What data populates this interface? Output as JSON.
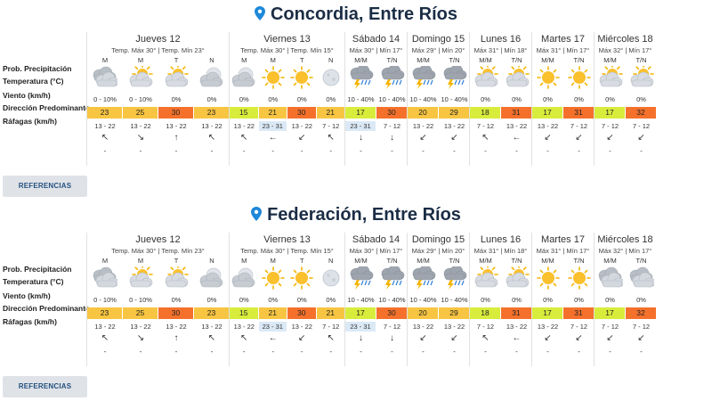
{
  "row_labels": {
    "precip": "Prob. Precipitación",
    "temp": "Temperatura (°C)",
    "wind": "Viento (km/h)",
    "direction": "Dirección Predominante",
    "gusts": "Ráfagas (km/h)"
  },
  "reference_button": "REFERENCIAS",
  "colors": {
    "title": "#1b2d45",
    "pin": "#1e88d9",
    "wind_highlight": "#dbe9f6"
  },
  "panels": [
    {
      "title": "Concordia, Entre Ríos",
      "days": [
        {
          "name": "Jueves 12",
          "sub": "Temp. Máx 30° | Temp. Mín 23°",
          "slots": [
            {
              "label": "M",
              "icon": "cloudy-icon",
              "precip": "0 - 10%",
              "temp": "23",
              "temp_color": "#f7c541",
              "wind": "13 - 22",
              "wind_hl": false,
              "dir": "↖",
              "gust": "-"
            },
            {
              "label": "M",
              "icon": "partly-cloudy-icon",
              "precip": "0 - 10%",
              "temp": "25",
              "temp_color": "#f7c541",
              "wind": "13 - 22",
              "wind_hl": false,
              "dir": "↘",
              "gust": "-"
            },
            {
              "label": "T",
              "icon": "partly-cloudy-icon",
              "precip": "0%",
              "temp": "30",
              "temp_color": "#f5712b",
              "wind": "13 - 22",
              "wind_hl": false,
              "dir": "↑",
              "gust": "-"
            },
            {
              "label": "N",
              "icon": "cloudy-night-icon",
              "precip": "0%",
              "temp": "23",
              "temp_color": "#f7c541",
              "wind": "13 - 22",
              "wind_hl": false,
              "dir": "↖",
              "gust": "-"
            }
          ]
        },
        {
          "name": "Viernes 13",
          "sub": "Temp. Máx 30° | Temp. Mín 15°",
          "slots": [
            {
              "label": "M",
              "icon": "cloudy-night-icon",
              "precip": "0%",
              "temp": "15",
              "temp_color": "#d8ec3c",
              "wind": "13 - 22",
              "wind_hl": false,
              "dir": "↖",
              "gust": "-"
            },
            {
              "label": "M",
              "icon": "sun-icon",
              "precip": "0%",
              "temp": "21",
              "temp_color": "#f7c541",
              "wind": "23 - 31",
              "wind_hl": true,
              "dir": "←",
              "gust": "-"
            },
            {
              "label": "T",
              "icon": "sun-icon",
              "precip": "0%",
              "temp": "30",
              "temp_color": "#f5712b",
              "wind": "13 - 22",
              "wind_hl": false,
              "dir": "↙",
              "gust": "-"
            },
            {
              "label": "N",
              "icon": "moon-icon",
              "precip": "0%",
              "temp": "21",
              "temp_color": "#f7c541",
              "wind": "7 - 12",
              "wind_hl": false,
              "dir": "↖",
              "gust": "-"
            }
          ]
        },
        {
          "name": "Sábado 14",
          "sub": "Máx 30° | Mín 17°",
          "slots": [
            {
              "label": "M/M",
              "icon": "storm-icon",
              "precip": "10 - 40%",
              "temp": "17",
              "temp_color": "#d8ec3c",
              "wind": "23 - 31",
              "wind_hl": true,
              "dir": "↓",
              "gust": "-"
            },
            {
              "label": "T/N",
              "icon": "storm-icon",
              "precip": "10 - 40%",
              "temp": "30",
              "temp_color": "#f5712b",
              "wind": "7 - 12",
              "wind_hl": false,
              "dir": "↓",
              "gust": "-"
            }
          ]
        },
        {
          "name": "Domingo 15",
          "sub": "Máx 29° | Mín 20°",
          "slots": [
            {
              "label": "M/M",
              "icon": "storm-icon",
              "precip": "10 - 40%",
              "temp": "20",
              "temp_color": "#f7c541",
              "wind": "13 - 22",
              "wind_hl": false,
              "dir": "↙",
              "gust": "-"
            },
            {
              "label": "T/N",
              "icon": "storm-icon",
              "precip": "10 - 40%",
              "temp": "29",
              "temp_color": "#f7c541",
              "wind": "13 - 22",
              "wind_hl": false,
              "dir": "↙",
              "gust": "-"
            }
          ]
        },
        {
          "name": "Lunes 16",
          "sub": "Máx 31° | Mín 18°",
          "slots": [
            {
              "label": "M/M",
              "icon": "partly-cloudy-icon",
              "precip": "0%",
              "temp": "18",
              "temp_color": "#d8ec3c",
              "wind": "7 - 12",
              "wind_hl": false,
              "dir": "↖",
              "gust": "-"
            },
            {
              "label": "T/N",
              "icon": "partly-cloudy-icon",
              "precip": "0%",
              "temp": "31",
              "temp_color": "#f5712b",
              "wind": "13 - 22",
              "wind_hl": false,
              "dir": "←",
              "gust": "-"
            }
          ]
        },
        {
          "name": "Martes 17",
          "sub": "Máx 31° | Mín 17°",
          "slots": [
            {
              "label": "M/M",
              "icon": "sun-icon",
              "precip": "0%",
              "temp": "17",
              "temp_color": "#d8ec3c",
              "wind": "13 - 22",
              "wind_hl": false,
              "dir": "↙",
              "gust": "-"
            },
            {
              "label": "T/N",
              "icon": "sun-icon",
              "precip": "0%",
              "temp": "31",
              "temp_color": "#f5712b",
              "wind": "7 - 12",
              "wind_hl": false,
              "dir": "↙",
              "gust": "-"
            }
          ]
        },
        {
          "name": "Miércoles 18",
          "sub": "Máx 32° | Mín 17°",
          "slots": [
            {
              "label": "M/M",
              "icon": "partly-cloudy-icon",
              "precip": "0%",
              "temp": "17",
              "temp_color": "#d8ec3c",
              "wind": "7 - 12",
              "wind_hl": false,
              "dir": "↙",
              "gust": "-"
            },
            {
              "label": "T/N",
              "icon": "partly-cloudy-icon",
              "precip": "0%",
              "temp": "32",
              "temp_color": "#f5712b",
              "wind": "7 - 12",
              "wind_hl": false,
              "dir": "↙",
              "gust": "-"
            }
          ]
        }
      ]
    },
    {
      "title": "Federación, Entre Ríos",
      "days": [
        {
          "name": "Jueves 12",
          "sub": "Temp. Máx 30° | Temp. Mín 23°",
          "slots": [
            {
              "label": "M",
              "icon": "cloudy-icon",
              "precip": "0 - 10%",
              "temp": "23",
              "temp_color": "#f7c541",
              "wind": "13 - 22",
              "wind_hl": false,
              "dir": "↖",
              "gust": "-"
            },
            {
              "label": "M",
              "icon": "partly-cloudy-icon",
              "precip": "0 - 10%",
              "temp": "25",
              "temp_color": "#f7c541",
              "wind": "13 - 22",
              "wind_hl": false,
              "dir": "↘",
              "gust": "-"
            },
            {
              "label": "T",
              "icon": "partly-cloudy-icon",
              "precip": "0%",
              "temp": "30",
              "temp_color": "#f5712b",
              "wind": "13 - 22",
              "wind_hl": false,
              "dir": "↑",
              "gust": "-"
            },
            {
              "label": "N",
              "icon": "cloudy-night-icon",
              "precip": "0%",
              "temp": "23",
              "temp_color": "#f7c541",
              "wind": "13 - 22",
              "wind_hl": false,
              "dir": "↖",
              "gust": "-"
            }
          ]
        },
        {
          "name": "Viernes 13",
          "sub": "Temp. Máx 30° | Temp. Mín 15°",
          "slots": [
            {
              "label": "M",
              "icon": "cloudy-night-icon",
              "precip": "0%",
              "temp": "15",
              "temp_color": "#d8ec3c",
              "wind": "13 - 22",
              "wind_hl": false,
              "dir": "↖",
              "gust": "-"
            },
            {
              "label": "M",
              "icon": "sun-icon",
              "precip": "0%",
              "temp": "21",
              "temp_color": "#f7c541",
              "wind": "23 - 31",
              "wind_hl": true,
              "dir": "←",
              "gust": "-"
            },
            {
              "label": "T",
              "icon": "sun-icon",
              "precip": "0%",
              "temp": "30",
              "temp_color": "#f5712b",
              "wind": "13 - 22",
              "wind_hl": false,
              "dir": "↙",
              "gust": "-"
            },
            {
              "label": "N",
              "icon": "moon-icon",
              "precip": "0%",
              "temp": "21",
              "temp_color": "#f7c541",
              "wind": "7 - 12",
              "wind_hl": false,
              "dir": "↖",
              "gust": "-"
            }
          ]
        },
        {
          "name": "Sábado 14",
          "sub": "Máx 30° | Mín 17°",
          "slots": [
            {
              "label": "M/M",
              "icon": "storm-icon",
              "precip": "10 - 40%",
              "temp": "17",
              "temp_color": "#d8ec3c",
              "wind": "23 - 31",
              "wind_hl": true,
              "dir": "↓",
              "gust": "-"
            },
            {
              "label": "T/N",
              "icon": "storm-icon",
              "precip": "10 - 40%",
              "temp": "30",
              "temp_color": "#f5712b",
              "wind": "7 - 12",
              "wind_hl": false,
              "dir": "↓",
              "gust": "-"
            }
          ]
        },
        {
          "name": "Domingo 15",
          "sub": "Máx 29° | Mín 20°",
          "slots": [
            {
              "label": "M/M",
              "icon": "storm-icon",
              "precip": "10 - 40%",
              "temp": "20",
              "temp_color": "#f7c541",
              "wind": "13 - 22",
              "wind_hl": false,
              "dir": "↙",
              "gust": "-"
            },
            {
              "label": "T/N",
              "icon": "storm-icon",
              "precip": "10 - 40%",
              "temp": "29",
              "temp_color": "#f7c541",
              "wind": "13 - 22",
              "wind_hl": false,
              "dir": "↙",
              "gust": "-"
            }
          ]
        },
        {
          "name": "Lunes 16",
          "sub": "Máx 31° | Mín 18°",
          "slots": [
            {
              "label": "M/M",
              "icon": "partly-cloudy-icon",
              "precip": "0%",
              "temp": "18",
              "temp_color": "#d8ec3c",
              "wind": "7 - 12",
              "wind_hl": false,
              "dir": "↖",
              "gust": "-"
            },
            {
              "label": "T/N",
              "icon": "partly-cloudy-icon",
              "precip": "0%",
              "temp": "31",
              "temp_color": "#f5712b",
              "wind": "13 - 22",
              "wind_hl": false,
              "dir": "←",
              "gust": "-"
            }
          ]
        },
        {
          "name": "Martes 17",
          "sub": "Máx 31° | Mín 17°",
          "slots": [
            {
              "label": "M/M",
              "icon": "sun-icon",
              "precip": "0%",
              "temp": "17",
              "temp_color": "#d8ec3c",
              "wind": "13 - 22",
              "wind_hl": false,
              "dir": "↙",
              "gust": "-"
            },
            {
              "label": "T/N",
              "icon": "sun-icon",
              "precip": "0%",
              "temp": "31",
              "temp_color": "#f5712b",
              "wind": "7 - 12",
              "wind_hl": false,
              "dir": "↙",
              "gust": "-"
            }
          ]
        },
        {
          "name": "Miércoles 18",
          "sub": "Máx 32° | Mín 17°",
          "slots": [
            {
              "label": "M/M",
              "icon": "cloudy-icon",
              "precip": "0%",
              "temp": "17",
              "temp_color": "#d8ec3c",
              "wind": "7 - 12",
              "wind_hl": false,
              "dir": "↙",
              "gust": "-"
            },
            {
              "label": "T/N",
              "icon": "cloudy-icon",
              "precip": "0%",
              "temp": "32",
              "temp_color": "#f5712b",
              "wind": "7 - 12",
              "wind_hl": false,
              "dir": "↙",
              "gust": "-"
            }
          ]
        }
      ]
    }
  ]
}
